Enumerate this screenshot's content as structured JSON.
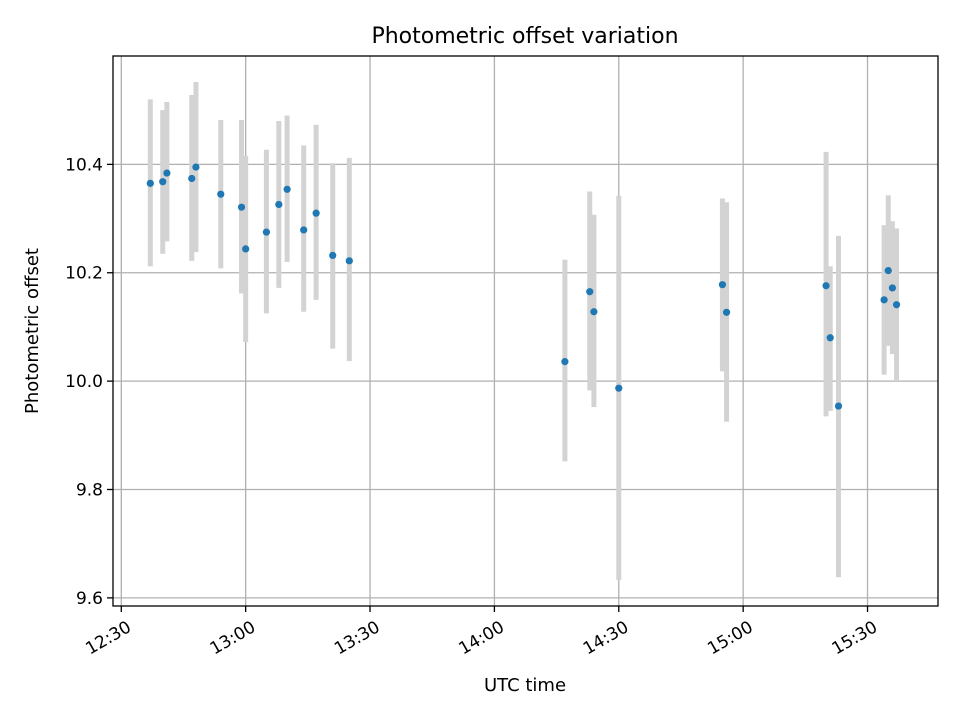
{
  "chart_data": {
    "type": "scatter",
    "title": "Photometric offset variation",
    "xlabel": "UTC time",
    "ylabel": "Photometric offset",
    "x_axis": {
      "type": "time",
      "lim": [
        "12:28",
        "15:47"
      ],
      "ticks": [
        "12:30",
        "13:00",
        "13:30",
        "14:00",
        "14:30",
        "15:00",
        "15:30"
      ]
    },
    "y_axis": {
      "lim": [
        9.585,
        10.6
      ],
      "ticks": [
        "9.6",
        "9.8",
        "10.0",
        "10.2",
        "10.4"
      ]
    },
    "grid": true,
    "marker_color": "#1f77b4",
    "errorbar_color": "#d3d3d3",
    "points": [
      {
        "x": "12:37",
        "y": 10.365,
        "lo": 10.212,
        "hi": 10.52
      },
      {
        "x": "12:40",
        "y": 10.368,
        "lo": 10.235,
        "hi": 10.5
      },
      {
        "x": "12:41",
        "y": 10.384,
        "lo": 10.258,
        "hi": 10.515
      },
      {
        "x": "12:47",
        "y": 10.374,
        "lo": 10.222,
        "hi": 10.528
      },
      {
        "x": "12:48",
        "y": 10.395,
        "lo": 10.238,
        "hi": 10.552
      },
      {
        "x": "12:54",
        "y": 10.345,
        "lo": 10.208,
        "hi": 10.482
      },
      {
        "x": "12:59",
        "y": 10.321,
        "lo": 10.162,
        "hi": 10.482
      },
      {
        "x": "13:00",
        "y": 10.244,
        "lo": 10.072,
        "hi": 10.416
      },
      {
        "x": "13:05",
        "y": 10.275,
        "lo": 10.125,
        "hi": 10.427
      },
      {
        "x": "13:08",
        "y": 10.326,
        "lo": 10.172,
        "hi": 10.48
      },
      {
        "x": "13:10",
        "y": 10.354,
        "lo": 10.22,
        "hi": 10.49
      },
      {
        "x": "13:14",
        "y": 10.279,
        "lo": 10.128,
        "hi": 10.435
      },
      {
        "x": "13:17",
        "y": 10.31,
        "lo": 10.15,
        "hi": 10.473
      },
      {
        "x": "13:21",
        "y": 10.232,
        "lo": 10.06,
        "hi": 10.402
      },
      {
        "x": "13:25",
        "y": 10.222,
        "lo": 10.037,
        "hi": 10.412
      },
      {
        "x": "14:17",
        "y": 10.036,
        "lo": 9.852,
        "hi": 10.224
      },
      {
        "x": "14:23",
        "y": 10.165,
        "lo": 9.983,
        "hi": 10.35
      },
      {
        "x": "14:24",
        "y": 10.128,
        "lo": 9.952,
        "hi": 10.307
      },
      {
        "x": "14:30",
        "y": 9.987,
        "lo": 9.633,
        "hi": 10.342
      },
      {
        "x": "14:55",
        "y": 10.178,
        "lo": 10.018,
        "hi": 10.337
      },
      {
        "x": "14:56",
        "y": 10.127,
        "lo": 9.925,
        "hi": 10.33
      },
      {
        "x": "15:20",
        "y": 10.176,
        "lo": 9.935,
        "hi": 10.423
      },
      {
        "x": "15:21",
        "y": 10.08,
        "lo": 9.945,
        "hi": 10.212
      },
      {
        "x": "15:23",
        "y": 9.954,
        "lo": 9.638,
        "hi": 10.268
      },
      {
        "x": "15:34",
        "y": 10.15,
        "lo": 10.012,
        "hi": 10.288
      },
      {
        "x": "15:35",
        "y": 10.204,
        "lo": 10.065,
        "hi": 10.343
      },
      {
        "x": "15:36",
        "y": 10.172,
        "lo": 10.05,
        "hi": 10.295
      },
      {
        "x": "15:37",
        "y": 10.141,
        "lo": 10.0,
        "hi": 10.282
      }
    ]
  }
}
